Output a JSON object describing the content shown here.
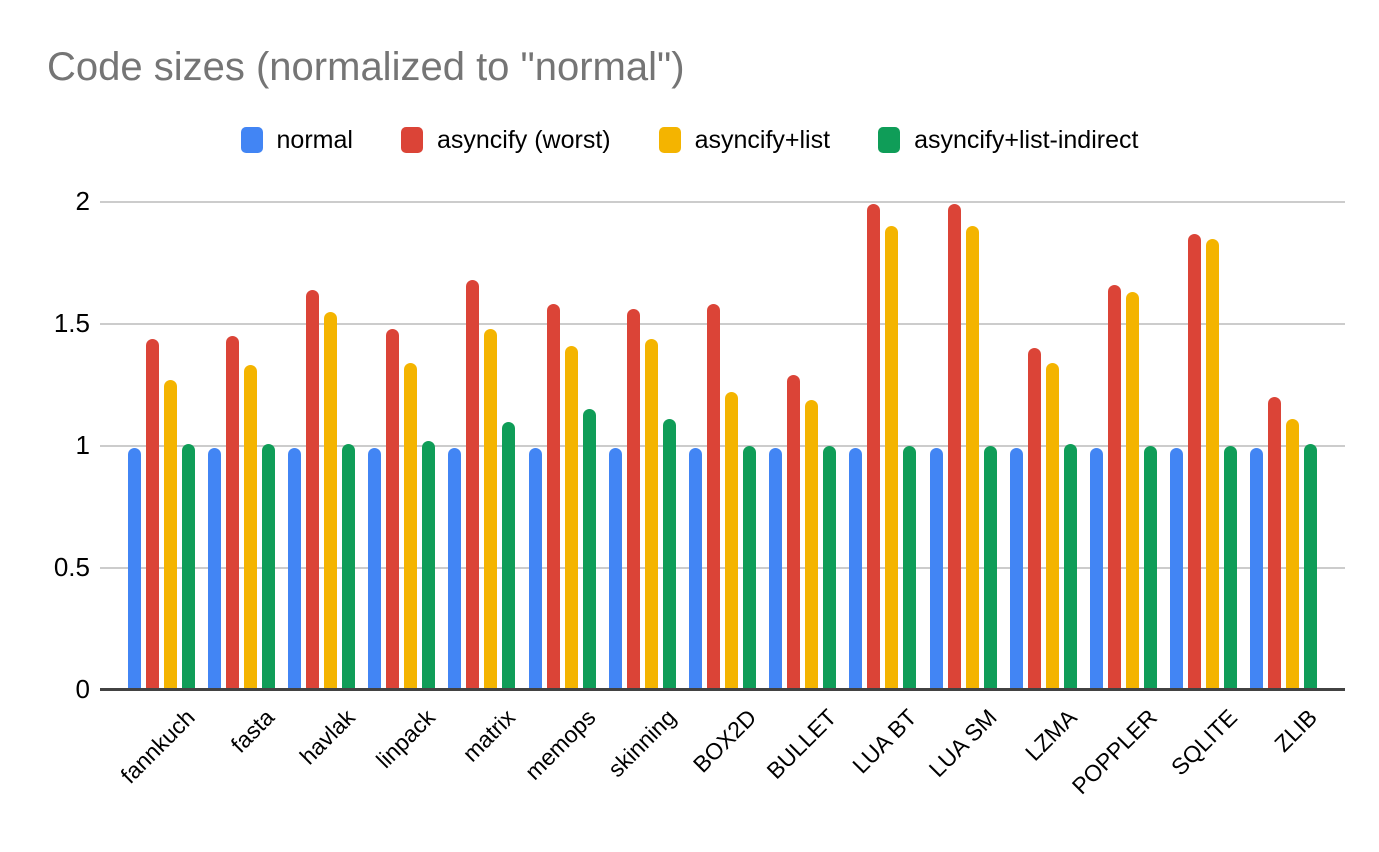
{
  "chart_data": {
    "type": "bar",
    "title": "Code sizes (normalized to \"normal\")",
    "xlabel": "",
    "ylabel": "",
    "categories": [
      "fannkuch",
      "fasta",
      "havlak",
      "linpack",
      "matrix",
      "memops",
      "skinning",
      "BOX2D",
      "BULLET",
      "LUA BT",
      "LUA SM",
      "LZMA",
      "POPPLER",
      "SQLITE",
      "ZLIB"
    ],
    "series": [
      {
        "name": "normal",
        "color": "#4285F4",
        "values": [
          0.99,
          0.99,
          0.99,
          0.99,
          0.99,
          0.99,
          0.99,
          0.99,
          0.99,
          0.99,
          0.99,
          0.99,
          0.99,
          0.99,
          0.99
        ]
      },
      {
        "name": "asyncify (worst)",
        "color": "#DB4437",
        "values": [
          1.44,
          1.45,
          1.64,
          1.48,
          1.68,
          1.58,
          1.56,
          1.58,
          1.29,
          1.99,
          1.99,
          1.4,
          1.66,
          1.87,
          1.2
        ]
      },
      {
        "name": "asyncify+list",
        "color": "#F4B400",
        "values": [
          1.27,
          1.33,
          1.55,
          1.34,
          1.48,
          1.41,
          1.44,
          1.22,
          1.19,
          1.9,
          1.9,
          1.34,
          1.63,
          1.85,
          1.11
        ]
      },
      {
        "name": "asyncify+list-indirect",
        "color": "#0F9D58",
        "values": [
          1.01,
          1.01,
          1.01,
          1.02,
          1.1,
          1.15,
          1.11,
          1.0,
          1.0,
          1.0,
          1.0,
          1.01,
          1.0,
          1.0,
          1.01
        ]
      }
    ],
    "y_ticks": [
      0,
      0.5,
      1,
      1.5,
      2
    ],
    "ylim": [
      0,
      2
    ],
    "grid": true,
    "legend_position": "top",
    "styles": {
      "title_color": "#757575",
      "grid_color": "#cccccc",
      "baseline_color": "#424242",
      "axis_label_color": "#000000",
      "background": "#ffffff"
    }
  }
}
